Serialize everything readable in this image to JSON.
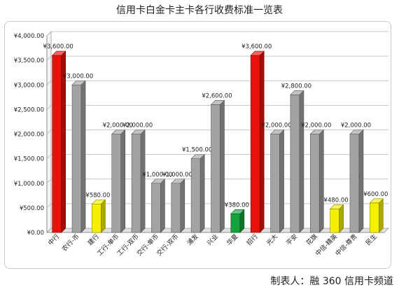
{
  "title": "信用卡白金卡主卡各行收费标准一览表",
  "credit": "制表人：融 360 信用卡频道",
  "colors": {
    "red": "#e8120c",
    "grey": "#a3a3a3",
    "yellow": "#f4f000",
    "green": "#16a23c",
    "grid": "#b5b5b5"
  },
  "chart_data": {
    "type": "bar",
    "title": "信用卡白金卡主卡各行收费标准一览表",
    "xlabel": "",
    "ylabel": "",
    "ylim": [
      0,
      4000
    ],
    "yticks": [
      "¥0.00",
      "¥500.00",
      "¥1,000.00",
      "¥1,500.00",
      "¥2,000.00",
      "¥2,500.00",
      "¥3,000.00",
      "¥3,500.00",
      "¥4,000.00"
    ],
    "categories": [
      "中行",
      "农行-币",
      "建行",
      "工行-单币",
      "工行-双币",
      "交行-单币",
      "交行-双币",
      "浦发",
      "兴业",
      "华夏",
      "招行",
      "光大",
      "平安",
      "花旗",
      "中信-精英",
      "中信-尊贵",
      "民生"
    ],
    "values": [
      3600,
      3000,
      580,
      2000,
      2000,
      1000,
      1000,
      1500,
      2600,
      380,
      3600,
      2000,
      2800,
      2000,
      480,
      2000,
      600
    ],
    "labels": [
      "¥3,600.00",
      "¥3,000.00",
      "¥580.00",
      "¥2,000.00",
      "¥2,000.00",
      "¥1,000.00",
      "¥1,000.00",
      "¥1,500.00",
      "¥2,600.00",
      "¥380.00",
      "¥3,600.00",
      "¥2,000.00",
      "¥2,800.00",
      "¥2,000.00",
      "¥480.00",
      "¥2,000.00",
      "¥600.00"
    ],
    "bar_colors": [
      "red",
      "grey",
      "yellow",
      "grey",
      "grey",
      "grey",
      "grey",
      "grey",
      "grey",
      "green",
      "red",
      "grey",
      "grey",
      "grey",
      "yellow",
      "grey",
      "yellow"
    ],
    "grid": true,
    "legend": false
  }
}
